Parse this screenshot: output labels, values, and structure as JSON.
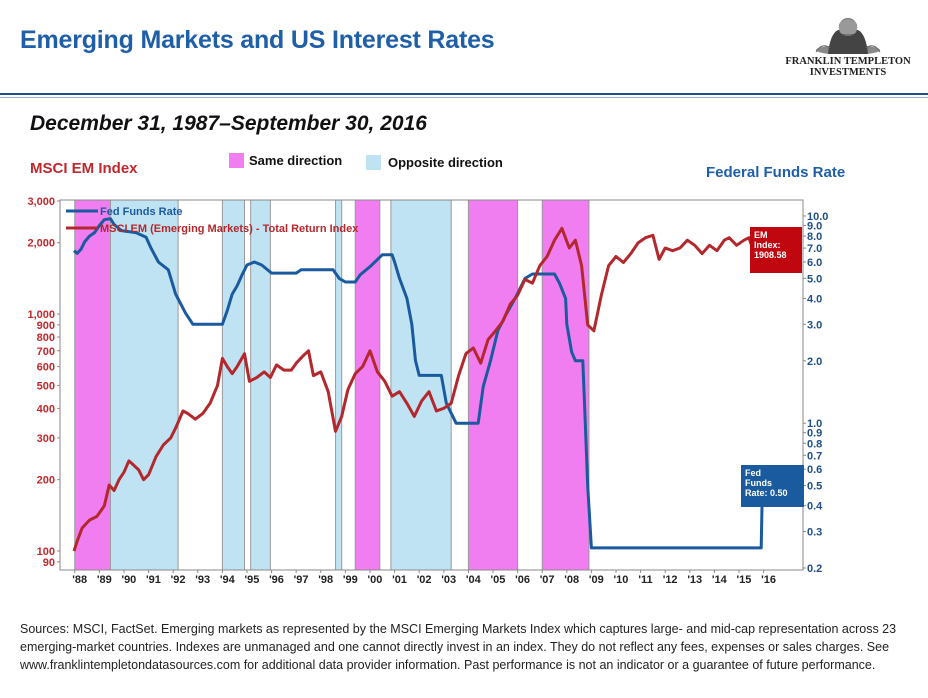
{
  "header": {
    "title": "Emerging Markets and US Interest Rates",
    "logo_line1": "FRANKLIN TEMPLETON",
    "logo_line2": "INVESTMENTS"
  },
  "subtitle": "December 31, 1987–September 30, 2016",
  "colors": {
    "title": "#1f5fa8",
    "em_line": "#b3282d",
    "fed_line": "#1a5a9e",
    "same": "#f07ef0",
    "opposite": "#bfe3f2"
  },
  "chart_data": {
    "type": "line",
    "left_axis_title": "MSCI EM Index",
    "right_axis_title": "Federal Funds Rate",
    "legend": {
      "same": "Same direction",
      "opposite": "Opposite direction"
    },
    "x_range": [
      1987.4,
      2017.6
    ],
    "x_tick_labels": [
      {
        "year": 1988,
        "label": "'88"
      },
      {
        "year": 1989,
        "label": "'89"
      },
      {
        "year": 1990,
        "label": "'90"
      },
      {
        "year": 1991,
        "label": "'91"
      },
      {
        "year": 1992,
        "label": "'92"
      },
      {
        "year": 1993,
        "label": "'93"
      },
      {
        "year": 1994,
        "label": "'94"
      },
      {
        "year": 1995,
        "label": "'95"
      },
      {
        "year": 1996,
        "label": "'96"
      },
      {
        "year": 1997,
        "label": "'97"
      },
      {
        "year": 1998,
        "label": "'98"
      },
      {
        "year": 1999,
        "label": "'99"
      },
      {
        "year": 2000,
        "label": "'00"
      },
      {
        "year": 2001,
        "label": "'01"
      },
      {
        "year": 2002,
        "label": "'02"
      },
      {
        "year": 2003,
        "label": "'03"
      },
      {
        "year": 2004,
        "label": "'04"
      },
      {
        "year": 2005,
        "label": "'05"
      },
      {
        "year": 2006,
        "label": "'06"
      },
      {
        "year": 2007,
        "label": "'07"
      },
      {
        "year": 2008,
        "label": "'08"
      },
      {
        "year": 2009,
        "label": "'09"
      },
      {
        "year": 2010,
        "label": "'10"
      },
      {
        "year": 2011,
        "label": "'11"
      },
      {
        "year": 2012,
        "label": "'12"
      },
      {
        "year": 2013,
        "label": "'13"
      },
      {
        "year": 2014,
        "label": "'14"
      },
      {
        "year": 2015,
        "label": "'15"
      },
      {
        "year": 2016,
        "label": "'16"
      }
    ],
    "left_axis": {
      "scale": "log",
      "range": [
        85,
        3000
      ],
      "ticks": [
        {
          "v": 3000,
          "label": "3,000"
        },
        {
          "v": 2000,
          "label": "2,000"
        },
        {
          "v": 1000,
          "label": "1,000"
        },
        {
          "v": 900,
          "label": "900"
        },
        {
          "v": 800,
          "label": "800"
        },
        {
          "v": 700,
          "label": "700"
        },
        {
          "v": 600,
          "label": "600"
        },
        {
          "v": 500,
          "label": "500"
        },
        {
          "v": 400,
          "label": "400"
        },
        {
          "v": 300,
          "label": "300"
        },
        {
          "v": 200,
          "label": "200"
        },
        {
          "v": 100,
          "label": "100"
        },
        {
          "v": 90,
          "label": "90"
        }
      ]
    },
    "right_axis": {
      "scale": "log",
      "range": [
        0.2,
        10.0
      ],
      "ticks": [
        {
          "v": 10,
          "label": "10.0"
        },
        {
          "v": 9,
          "label": "9.0"
        },
        {
          "v": 8,
          "label": "8.0"
        },
        {
          "v": 7,
          "label": "7.0"
        },
        {
          "v": 6,
          "label": "6.0"
        },
        {
          "v": 5,
          "label": "5.0"
        },
        {
          "v": 4,
          "label": "4.0"
        },
        {
          "v": 3,
          "label": "3.0"
        },
        {
          "v": 2,
          "label": "2.0"
        },
        {
          "v": 1,
          "label": "1.0"
        },
        {
          "v": 0.9,
          "label": "0.9"
        },
        {
          "v": 0.8,
          "label": "0.8"
        },
        {
          "v": 0.7,
          "label": "0.7"
        },
        {
          "v": 0.6,
          "label": "0.6"
        },
        {
          "v": 0.5,
          "label": "0.5"
        },
        {
          "v": 0.4,
          "label": "0.4"
        },
        {
          "v": 0.3,
          "label": "0.3"
        },
        {
          "v": 0.2,
          "label": "0.2"
        }
      ]
    },
    "periods": [
      {
        "type": "same",
        "start": 1988.0,
        "end": 1989.45
      },
      {
        "type": "opposite",
        "start": 1989.45,
        "end": 1992.2
      },
      {
        "type": "opposite",
        "start": 1994.0,
        "end": 1994.9
      },
      {
        "type": "opposite",
        "start": 1995.15,
        "end": 1995.95
      },
      {
        "type": "opposite",
        "start": 1998.6,
        "end": 1998.85
      },
      {
        "type": "same",
        "start": 1999.4,
        "end": 2000.4
      },
      {
        "type": "opposite",
        "start": 2000.85,
        "end": 2003.3
      },
      {
        "type": "same",
        "start": 2004.0,
        "end": 2006.0
      },
      {
        "type": "same",
        "start": 2007.0,
        "end": 2008.9
      }
    ],
    "series": [
      {
        "name": "Fed Funds Rate",
        "axis": "right",
        "color": "#1a5a9e",
        "points": [
          [
            1987.97,
            6.8
          ],
          [
            1988.1,
            6.6
          ],
          [
            1988.25,
            6.9
          ],
          [
            1988.4,
            7.5
          ],
          [
            1988.6,
            8.0
          ],
          [
            1988.8,
            8.3
          ],
          [
            1989.0,
            9.0
          ],
          [
            1989.2,
            9.6
          ],
          [
            1989.45,
            9.7
          ],
          [
            1989.6,
            9.1
          ],
          [
            1989.9,
            8.5
          ],
          [
            1990.5,
            8.3
          ],
          [
            1990.9,
            7.9
          ],
          [
            1991.1,
            7.0
          ],
          [
            1991.4,
            6.0
          ],
          [
            1991.8,
            5.5
          ],
          [
            1992.1,
            4.2
          ],
          [
            1992.5,
            3.4
          ],
          [
            1992.8,
            3.0
          ],
          [
            1994.0,
            3.0
          ],
          [
            1994.2,
            3.5
          ],
          [
            1994.4,
            4.2
          ],
          [
            1994.6,
            4.6
          ],
          [
            1994.8,
            5.2
          ],
          [
            1995.0,
            5.8
          ],
          [
            1995.3,
            6.0
          ],
          [
            1995.6,
            5.8
          ],
          [
            1996.0,
            5.3
          ],
          [
            1996.5,
            5.3
          ],
          [
            1997.0,
            5.3
          ],
          [
            1997.2,
            5.5
          ],
          [
            1998.0,
            5.5
          ],
          [
            1998.5,
            5.5
          ],
          [
            1998.75,
            5.0
          ],
          [
            1999.0,
            4.8
          ],
          [
            1999.4,
            4.8
          ],
          [
            1999.6,
            5.2
          ],
          [
            2000.0,
            5.7
          ],
          [
            2000.2,
            6.0
          ],
          [
            2000.5,
            6.5
          ],
          [
            2000.9,
            6.5
          ],
          [
            2001.0,
            6.0
          ],
          [
            2001.2,
            5.0
          ],
          [
            2001.5,
            4.0
          ],
          [
            2001.7,
            3.0
          ],
          [
            2001.85,
            2.0
          ],
          [
            2002.0,
            1.7
          ],
          [
            2002.9,
            1.7
          ],
          [
            2003.1,
            1.25
          ],
          [
            2003.5,
            1.0
          ],
          [
            2004.4,
            1.0
          ],
          [
            2004.6,
            1.5
          ],
          [
            2004.9,
            2.0
          ],
          [
            2005.2,
            2.8
          ],
          [
            2005.5,
            3.3
          ],
          [
            2005.9,
            4.0
          ],
          [
            2006.3,
            5.0
          ],
          [
            2006.6,
            5.25
          ],
          [
            2007.5,
            5.25
          ],
          [
            2007.7,
            4.75
          ],
          [
            2007.95,
            4.0
          ],
          [
            2008.0,
            3.0
          ],
          [
            2008.2,
            2.2
          ],
          [
            2008.35,
            2.0
          ],
          [
            2008.65,
            2.0
          ],
          [
            2008.75,
            1.0
          ],
          [
            2008.85,
            0.5
          ],
          [
            2009.0,
            0.25
          ],
          [
            2015.9,
            0.25
          ],
          [
            2015.95,
            0.5
          ],
          [
            2016.25,
            0.5
          ],
          [
            2016.75,
            0.5
          ]
        ]
      },
      {
        "name": "MSCI EM (Emerging Markets) - Total Return Index",
        "axis": "left",
        "color": "#b3282d",
        "points": [
          [
            1987.97,
            100
          ],
          [
            1988.1,
            110
          ],
          [
            1988.3,
            125
          ],
          [
            1988.6,
            135
          ],
          [
            1988.9,
            140
          ],
          [
            1989.2,
            155
          ],
          [
            1989.4,
            190
          ],
          [
            1989.6,
            180
          ],
          [
            1989.8,
            200
          ],
          [
            1990.0,
            215
          ],
          [
            1990.2,
            240
          ],
          [
            1990.4,
            230
          ],
          [
            1990.6,
            220
          ],
          [
            1990.8,
            200
          ],
          [
            1991.0,
            210
          ],
          [
            1991.3,
            250
          ],
          [
            1991.6,
            280
          ],
          [
            1991.9,
            300
          ],
          [
            1992.1,
            330
          ],
          [
            1992.4,
            390
          ],
          [
            1992.6,
            380
          ],
          [
            1992.9,
            360
          ],
          [
            1993.2,
            380
          ],
          [
            1993.5,
            420
          ],
          [
            1993.8,
            500
          ],
          [
            1994.0,
            650
          ],
          [
            1994.2,
            600
          ],
          [
            1994.4,
            560
          ],
          [
            1994.6,
            600
          ],
          [
            1994.9,
            680
          ],
          [
            1995.1,
            520
          ],
          [
            1995.4,
            540
          ],
          [
            1995.7,
            570
          ],
          [
            1995.95,
            540
          ],
          [
            1996.2,
            610
          ],
          [
            1996.5,
            580
          ],
          [
            1996.8,
            580
          ],
          [
            1997.0,
            620
          ],
          [
            1997.3,
            670
          ],
          [
            1997.5,
            700
          ],
          [
            1997.7,
            550
          ],
          [
            1998.0,
            570
          ],
          [
            1998.3,
            470
          ],
          [
            1998.6,
            320
          ],
          [
            1998.85,
            370
          ],
          [
            1999.1,
            480
          ],
          [
            1999.4,
            560
          ],
          [
            1999.7,
            600
          ],
          [
            2000.0,
            700
          ],
          [
            2000.3,
            570
          ],
          [
            2000.6,
            520
          ],
          [
            2000.9,
            450
          ],
          [
            2001.2,
            470
          ],
          [
            2001.5,
            420
          ],
          [
            2001.8,
            370
          ],
          [
            2002.1,
            430
          ],
          [
            2002.4,
            470
          ],
          [
            2002.7,
            390
          ],
          [
            2003.0,
            400
          ],
          [
            2003.3,
            420
          ],
          [
            2003.6,
            550
          ],
          [
            2003.9,
            680
          ],
          [
            2004.2,
            720
          ],
          [
            2004.5,
            620
          ],
          [
            2004.8,
            780
          ],
          [
            2005.1,
            850
          ],
          [
            2005.4,
            930
          ],
          [
            2005.7,
            1100
          ],
          [
            2006.0,
            1200
          ],
          [
            2006.3,
            1400
          ],
          [
            2006.6,
            1350
          ],
          [
            2006.9,
            1600
          ],
          [
            2007.2,
            1750
          ],
          [
            2007.5,
            2050
          ],
          [
            2007.8,
            2300
          ],
          [
            2008.1,
            1900
          ],
          [
            2008.35,
            2050
          ],
          [
            2008.6,
            1600
          ],
          [
            2008.85,
            900
          ],
          [
            2009.1,
            850
          ],
          [
            2009.4,
            1200
          ],
          [
            2009.7,
            1600
          ],
          [
            2010.0,
            1750
          ],
          [
            2010.3,
            1650
          ],
          [
            2010.6,
            1800
          ],
          [
            2010.9,
            2000
          ],
          [
            2011.2,
            2100
          ],
          [
            2011.5,
            2150
          ],
          [
            2011.75,
            1700
          ],
          [
            2012.0,
            1900
          ],
          [
            2012.3,
            1850
          ],
          [
            2012.6,
            1900
          ],
          [
            2012.9,
            2050
          ],
          [
            2013.2,
            1950
          ],
          [
            2013.5,
            1800
          ],
          [
            2013.8,
            1950
          ],
          [
            2014.1,
            1850
          ],
          [
            2014.4,
            2050
          ],
          [
            2014.6,
            2100
          ],
          [
            2014.9,
            1950
          ],
          [
            2015.2,
            2050
          ],
          [
            2015.4,
            2100
          ],
          [
            2015.7,
            1700
          ],
          [
            2015.95,
            1650
          ],
          [
            2016.1,
            1550
          ],
          [
            2016.35,
            1750
          ],
          [
            2016.6,
            1800
          ],
          [
            2016.75,
            1908.58
          ]
        ]
      }
    ],
    "callouts": {
      "em": [
        "EM",
        "Index:",
        "1908.58"
      ],
      "fed": [
        "Fed",
        "Funds",
        "Rate: 0.50"
      ]
    }
  },
  "source_text": "Sources: MSCI, FactSet. Emerging markets as represented by the MSCI Emerging Markets Index which captures large- and mid-cap representation across 23 emerging-market countries. Indexes are unmanaged and one cannot directly invest in an index. They do not reflect any fees, expenses or sales charges. See  www.franklintempletondatasources.com for additional data provider information. Past performance is not an indicator or a guarantee of future performance."
}
